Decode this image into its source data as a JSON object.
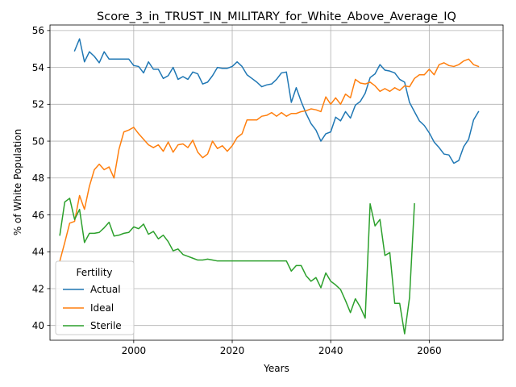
{
  "chart_data": {
    "type": "line",
    "title": "Score_3_in_TRUST_IN_MILITARY_for_White_Above_Average_IQ",
    "xlabel": "Years",
    "ylabel": "% of White Population",
    "xlim": [
      1983,
      2075
    ],
    "ylim": [
      39.2,
      56.3
    ],
    "xticks": [
      2000,
      2020,
      2040,
      2060
    ],
    "yticks": [
      40,
      42,
      44,
      46,
      48,
      50,
      52,
      54,
      56
    ],
    "grid": true,
    "legend": {
      "title": "Fertility",
      "placement": "lower-left"
    },
    "series": [
      {
        "name": "Actual",
        "color": "#1f77b4",
        "x": [
          1988,
          1989,
          1990,
          1991,
          1992,
          1993,
          1994,
          1995,
          1996,
          1997,
          1998,
          1999,
          2000,
          2001,
          2002,
          2003,
          2004,
          2005,
          2006,
          2007,
          2008,
          2009,
          2010,
          2011,
          2012,
          2013,
          2014,
          2015,
          2016,
          2017,
          2018,
          2019,
          2020,
          2021,
          2022,
          2023,
          2024,
          2025,
          2026,
          2027,
          2028,
          2029,
          2030,
          2031,
          2032,
          2033,
          2034,
          2035,
          2036,
          2037,
          2038,
          2039,
          2040,
          2041,
          2042,
          2043,
          2044,
          2045,
          2046,
          2047,
          2048,
          2049,
          2050,
          2051,
          2052,
          2053,
          2054,
          2055,
          2056,
          2057,
          2058,
          2059,
          2060,
          2061,
          2062,
          2063,
          2064,
          2065,
          2066,
          2067,
          2068,
          2069,
          2070
        ],
        "y": [
          54.9,
          55.55,
          54.3,
          54.85,
          54.6,
          54.25,
          54.85,
          54.45,
          54.45,
          54.45,
          54.45,
          54.45,
          54.1,
          54.05,
          53.7,
          54.3,
          53.9,
          53.9,
          53.4,
          53.55,
          54.0,
          53.35,
          53.5,
          53.35,
          53.75,
          53.65,
          53.1,
          53.2,
          53.55,
          54.0,
          53.95,
          53.95,
          54.05,
          54.3,
          54.05,
          53.6,
          53.4,
          53.2,
          52.95,
          53.05,
          53.1,
          53.35,
          53.7,
          53.75,
          52.1,
          52.9,
          52.15,
          51.5,
          50.95,
          50.6,
          50.0,
          50.4,
          50.5,
          51.3,
          51.1,
          51.6,
          51.25,
          51.95,
          52.15,
          52.6,
          53.45,
          53.65,
          54.15,
          53.85,
          53.8,
          53.7,
          53.35,
          53.2,
          52.1,
          51.6,
          51.1,
          50.85,
          50.45,
          49.95,
          49.65,
          49.3,
          49.25,
          48.8,
          48.95,
          49.7,
          50.1,
          51.15,
          51.6
        ]
      },
      {
        "name": "Ideal",
        "color": "#ff7f0e",
        "x": [
          1985,
          1986,
          1987,
          1988,
          1989,
          1990,
          1991,
          1992,
          1993,
          1994,
          1995,
          1996,
          1997,
          1998,
          1999,
          2000,
          2001,
          2002,
          2003,
          2004,
          2005,
          2006,
          2007,
          2008,
          2009,
          2010,
          2011,
          2012,
          2013,
          2014,
          2015,
          2016,
          2017,
          2018,
          2019,
          2020,
          2021,
          2022,
          2023,
          2024,
          2025,
          2026,
          2027,
          2028,
          2029,
          2030,
          2031,
          2032,
          2033,
          2034,
          2035,
          2036,
          2037,
          2038,
          2039,
          2040,
          2041,
          2042,
          2043,
          2044,
          2045,
          2046,
          2047,
          2048,
          2049,
          2050,
          2051,
          2052,
          2053,
          2054,
          2055,
          2056,
          2057,
          2058,
          2059,
          2060,
          2061,
          2062,
          2063,
          2064,
          2065,
          2066,
          2067,
          2068,
          2069,
          2070
        ],
        "y": [
          43.5,
          44.5,
          45.55,
          45.65,
          47.05,
          46.3,
          47.55,
          48.45,
          48.75,
          48.45,
          48.6,
          48.0,
          49.55,
          50.5,
          50.6,
          50.75,
          50.4,
          50.1,
          49.8,
          49.65,
          49.8,
          49.45,
          49.95,
          49.4,
          49.8,
          49.85,
          49.65,
          50.05,
          49.4,
          49.1,
          49.3,
          50.0,
          49.6,
          49.75,
          49.45,
          49.75,
          50.2,
          50.4,
          51.15,
          51.15,
          51.15,
          51.35,
          51.4,
          51.55,
          51.35,
          51.55,
          51.35,
          51.5,
          51.5,
          51.6,
          51.65,
          51.75,
          51.7,
          51.6,
          52.4,
          52.0,
          52.35,
          52.0,
          52.55,
          52.35,
          53.35,
          53.15,
          53.1,
          53.2,
          53.0,
          52.7,
          52.85,
          52.7,
          52.9,
          52.75,
          53.0,
          52.95,
          53.4,
          53.6,
          53.6,
          53.9,
          53.6,
          54.15,
          54.25,
          54.1,
          54.05,
          54.15,
          54.35,
          54.45,
          54.15,
          54.05
        ]
      },
      {
        "name": "Sterile",
        "color": "#2ca02c",
        "x": [
          1985,
          1986,
          1987,
          1988,
          1989,
          1990,
          1991,
          1992,
          1993,
          1994,
          1995,
          1996,
          1997,
          1998,
          1999,
          2000,
          2001,
          2002,
          2003,
          2004,
          2005,
          2006,
          2007,
          2008,
          2009,
          2010,
          2011,
          2012,
          2013,
          2014,
          2015,
          2016,
          2017,
          2018,
          2019,
          2020,
          2021,
          2022,
          2023,
          2024,
          2025,
          2026,
          2027,
          2028,
          2029,
          2030,
          2031,
          2032,
          2033,
          2034,
          2035,
          2036,
          2037,
          2038,
          2039,
          2040,
          2041,
          2042,
          2043,
          2044,
          2045,
          2046,
          2047,
          2048,
          2049,
          2050,
          2051,
          2052,
          2053,
          2054,
          2055,
          2056,
          2057
        ],
        "y": [
          44.9,
          46.7,
          46.9,
          45.75,
          46.3,
          44.5,
          45.0,
          45.0,
          45.05,
          45.3,
          45.6,
          44.85,
          44.9,
          45.0,
          45.05,
          45.35,
          45.25,
          45.5,
          44.95,
          45.1,
          44.7,
          44.9,
          44.55,
          44.05,
          44.15,
          43.85,
          43.75,
          43.65,
          43.55,
          43.55,
          43.6,
          43.55,
          43.5,
          43.5,
          43.5,
          43.5,
          43.5,
          43.5,
          43.5,
          43.5,
          43.5,
          43.5,
          43.5,
          43.5,
          43.5,
          43.5,
          43.5,
          42.95,
          43.25,
          43.25,
          42.7,
          42.4,
          42.6,
          42.05,
          42.85,
          42.4,
          42.2,
          41.95,
          41.35,
          40.7,
          41.45,
          41.0,
          40.4,
          46.6,
          45.4,
          45.75,
          43.8,
          43.95,
          41.2,
          41.2,
          39.55,
          41.5,
          46.6
        ]
      }
    ]
  }
}
